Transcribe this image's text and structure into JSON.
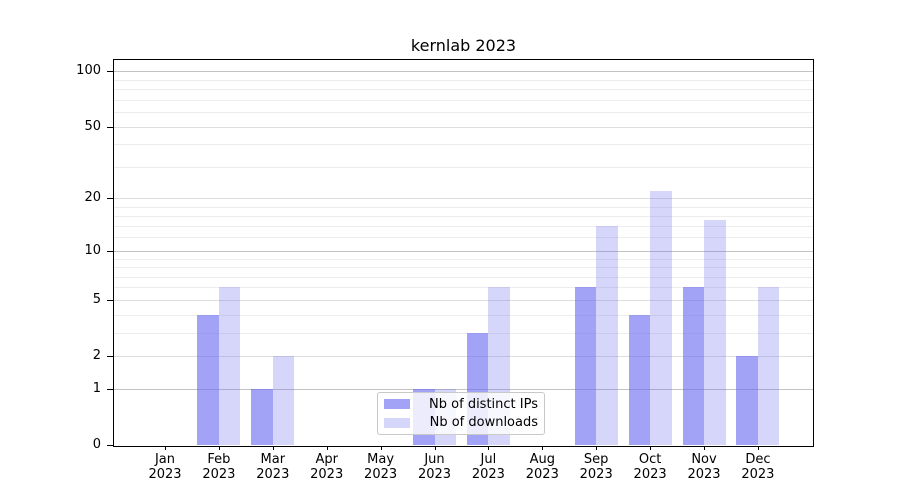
{
  "title": "kernlab 2023",
  "background_color": "#ffffff",
  "chart_data": {
    "type": "bar",
    "title": "kernlab 2023",
    "xlabel": "",
    "ylabel": "",
    "scale": "log1p",
    "ylim": [
      0,
      110
    ],
    "grid": "on",
    "categories": [
      "Jan",
      "Feb",
      "Mar",
      "Apr",
      "May",
      "Jun",
      "Jul",
      "Aug",
      "Sep",
      "Oct",
      "Nov",
      "Dec"
    ],
    "year": "2023",
    "series": [
      {
        "name": "Nb of distinct IPs",
        "color": "rgba(105,105,240,0.62)",
        "values": [
          0,
          4,
          1,
          0,
          0,
          1,
          3,
          0,
          6,
          4,
          6,
          2
        ]
      },
      {
        "name": "Nb of downloads",
        "color": "rgba(105,105,240,0.27)",
        "values": [
          0,
          6,
          2,
          0,
          0,
          1,
          6,
          0,
          14,
          22,
          15,
          6
        ]
      }
    ],
    "y_axis": {
      "tick_values": [
        0,
        1,
        2,
        5,
        10,
        20,
        50,
        100
      ],
      "tick_labels": [
        "0",
        "1",
        "2",
        "5",
        "10",
        "20",
        "50",
        "100"
      ],
      "gridlines_strong": [
        1,
        10,
        100
      ],
      "gridlines_medium": [
        2,
        5,
        20,
        50
      ],
      "gridlines_minor": [
        3,
        4,
        6,
        7,
        8,
        9,
        12,
        14,
        16,
        18,
        30,
        40,
        60,
        70,
        80,
        90
      ]
    },
    "legend": {
      "position": "lower center",
      "entries": [
        "Nb of distinct IPs",
        "Nb of downloads"
      ]
    }
  },
  "colors": {
    "bar_distinct_ips": "rgba(105,105,240,0.62)",
    "bar_downloads": "rgba(105,105,240,0.27)",
    "grid_strong": "#c3c3c3",
    "grid_medium": "#dedede",
    "grid_minor": "#ededed",
    "spine": "#000000",
    "legend_border": "#c9c9c9"
  }
}
